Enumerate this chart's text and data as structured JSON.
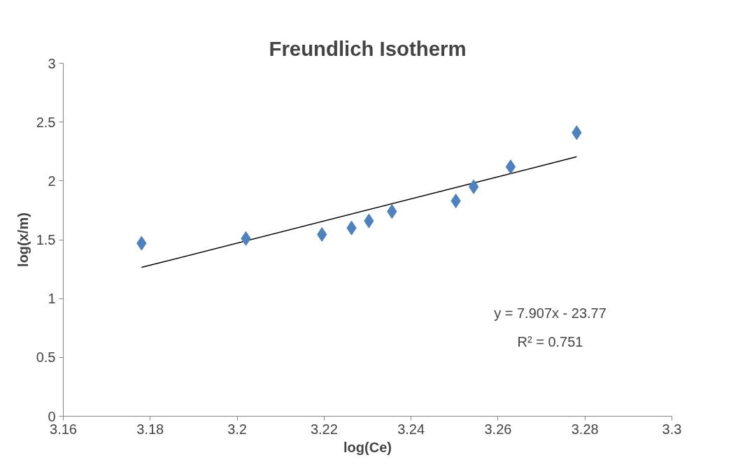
{
  "chart_data": {
    "type": "scatter",
    "title": "Freundlich Isotherm",
    "xlabel": "log(Ce)",
    "ylabel": "log(x/m)",
    "xlim": [
      3.16,
      3.3
    ],
    "xticks": [
      3.16,
      3.18,
      3.2,
      3.22,
      3.24,
      3.26,
      3.28,
      3.3
    ],
    "ylim": [
      0,
      3
    ],
    "yticks": [
      0,
      0.5,
      1,
      1.5,
      2,
      2.5,
      3
    ],
    "grid": false,
    "series": [
      {
        "marker": "diamond",
        "color": "#4f81bd",
        "x": [
          3.178,
          3.202,
          3.2195,
          3.2263,
          3.2303,
          3.2356,
          3.2503,
          3.2544,
          3.2629,
          3.2781
        ],
        "values": [
          1.47,
          1.51,
          1.545,
          1.6,
          1.66,
          1.74,
          1.83,
          1.95,
          2.12,
          2.41
        ]
      },
      {
        "type": "line",
        "marker": "none",
        "color": "#000000",
        "line_style": "solid",
        "x": [
          3.178,
          3.2781
        ],
        "values": [
          1.265,
          2.205
        ]
      }
    ],
    "annotations": [
      "y = 7.907x - 23.77",
      "R² = 0.751"
    ]
  }
}
